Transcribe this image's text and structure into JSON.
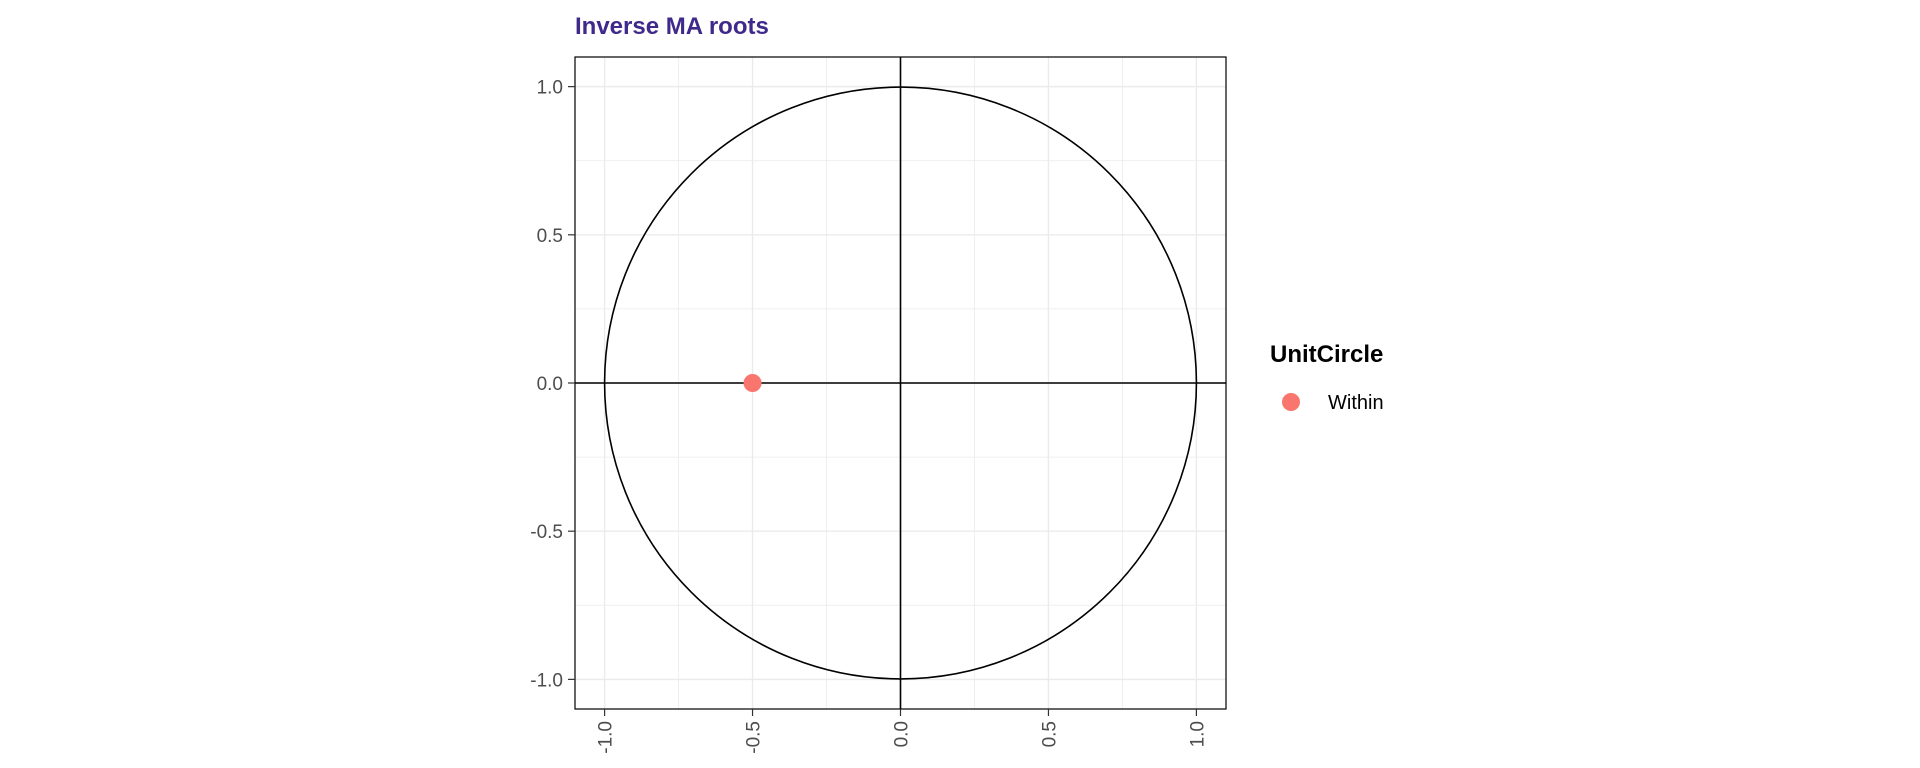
{
  "chart_data": {
    "type": "scatter",
    "title": "Inverse MA roots",
    "xlabel": "",
    "ylabel": "",
    "xlim": [
      -1.1,
      1.1
    ],
    "ylim": [
      -1.1,
      1.1
    ],
    "x_ticks": [
      -1.0,
      -0.5,
      0.0,
      0.5,
      1.0
    ],
    "y_ticks": [
      -1.0,
      -0.5,
      0.0,
      0.5,
      1.0
    ],
    "x_tick_labels": [
      "-1.0",
      "-0.5",
      "0.0",
      "0.5",
      "1.0"
    ],
    "y_tick_labels": [
      "-1.0",
      "-0.5",
      "0.0",
      "0.5",
      "1.0"
    ],
    "grid": true,
    "reference_circle_radius": 1,
    "reference_lines": {
      "x": 0,
      "y": 0
    },
    "points": [
      {
        "x": -0.5,
        "y": 0.0,
        "group": "Within"
      }
    ],
    "legend": {
      "title": "UnitCircle",
      "placement": "right",
      "entries": [
        {
          "label": "Within",
          "color": "#F8766D"
        }
      ]
    },
    "colors": {
      "title": "#3F2A8C",
      "point": "#F8766D",
      "grid": "#EBEBEB",
      "axis": "#000000",
      "tick_text": "#4D4D4D"
    }
  }
}
